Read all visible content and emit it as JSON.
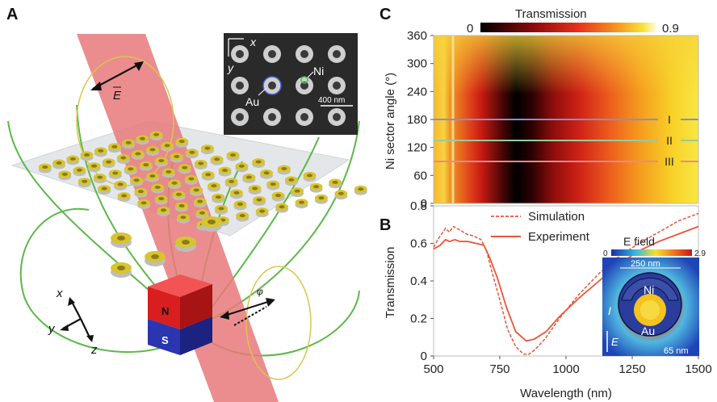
{
  "panels": {
    "a": {
      "label": "A",
      "field_label": "E",
      "inset_axis_x": "x",
      "inset_axis_y": "y",
      "inset_au": "Au",
      "inset_ni": "Ni",
      "inset_scale": "400 nm",
      "magnet_n": "N",
      "magnet_s": "S",
      "axes_x": "x",
      "axes_y": "y",
      "axes_z": "z",
      "phi": "φ"
    },
    "b": {
      "label": "B",
      "ylabel": "Transmission",
      "xlabel": "Wavelength (nm)",
      "legend_simulation": "Simulation",
      "legend_experiment": "Experiment",
      "inset_title": "E field",
      "inset_cb_min": "0",
      "inset_cb_max": "2.9",
      "inset_width": "250 nm",
      "inset_ni": "Ni",
      "inset_au": "Au",
      "inset_i": "I",
      "inset_e": "E",
      "inset_gap": "65 nm"
    },
    "c": {
      "label": "C",
      "title": "Transmission",
      "cb_min": "0",
      "cb_max": "0.9",
      "ylabel": "Ni sector angle (°)",
      "line_labels": [
        "I",
        "II",
        "III"
      ]
    }
  },
  "colors": {
    "beam": "#e8797a",
    "ring_gold": "#d8c431",
    "ring_silver": "#bdbdbd",
    "field_line": "#5cb84a",
    "magnet_n": "#e02020",
    "magnet_s": "#2a36b0",
    "curve": "#e8553a",
    "line_I": "#8a8ec8",
    "line_II": "#9ac99c",
    "line_III": "#e88a8a"
  },
  "chart_data": [
    {
      "type": "heatmap",
      "title": "Transmission",
      "xlabel": "",
      "ylabel": "Ni sector angle (°)",
      "x_range": [
        500,
        1500
      ],
      "y_range": [
        0,
        360
      ],
      "y_ticks": [
        0,
        60,
        120,
        180,
        240,
        300,
        360
      ],
      "colorbar_range": [
        0,
        0.9
      ],
      "marked_angles": [
        {
          "label": "I",
          "value": 180
        },
        {
          "label": "II",
          "value": 135
        },
        {
          "label": "III",
          "value": 90
        }
      ]
    },
    {
      "type": "line",
      "xlabel": "Wavelength (nm)",
      "ylabel": "Transmission",
      "xlim": [
        500,
        1500
      ],
      "ylim": [
        0,
        0.8
      ],
      "x_ticks": [
        500,
        750,
        1000,
        1250,
        1500
      ],
      "y_ticks": [
        0,
        0.2,
        0.4,
        0.6,
        0.8
      ],
      "series": [
        {
          "name": "Simulation",
          "style": "dashed",
          "points": [
            [
              500,
              0.58
            ],
            [
              520,
              0.63
            ],
            [
              545,
              0.68
            ],
            [
              560,
              0.66
            ],
            [
              575,
              0.69
            ],
            [
              600,
              0.67
            ],
            [
              625,
              0.65
            ],
            [
              650,
              0.64
            ],
            [
              680,
              0.62
            ],
            [
              700,
              0.56
            ],
            [
              720,
              0.45
            ],
            [
              750,
              0.3
            ],
            [
              780,
              0.14
            ],
            [
              810,
              0.05
            ],
            [
              840,
              0.01
            ],
            [
              860,
              0.01
            ],
            [
              880,
              0.03
            ],
            [
              920,
              0.09
            ],
            [
              975,
              0.2
            ],
            [
              1050,
              0.33
            ],
            [
              1125,
              0.44
            ],
            [
              1200,
              0.53
            ],
            [
              1275,
              0.6
            ],
            [
              1350,
              0.66
            ],
            [
              1425,
              0.72
            ],
            [
              1500,
              0.76
            ]
          ]
        },
        {
          "name": "Experiment",
          "style": "solid",
          "points": [
            [
              500,
              0.57
            ],
            [
              525,
              0.59
            ],
            [
              545,
              0.62
            ],
            [
              560,
              0.61
            ],
            [
              580,
              0.62
            ],
            [
              600,
              0.61
            ],
            [
              630,
              0.61
            ],
            [
              660,
              0.6
            ],
            [
              690,
              0.59
            ],
            [
              710,
              0.53
            ],
            [
              740,
              0.42
            ],
            [
              775,
              0.26
            ],
            [
              810,
              0.13
            ],
            [
              850,
              0.08
            ],
            [
              880,
              0.09
            ],
            [
              925,
              0.13
            ],
            [
              975,
              0.21
            ],
            [
              1050,
              0.31
            ],
            [
              1125,
              0.4
            ],
            [
              1200,
              0.49
            ],
            [
              1275,
              0.56
            ],
            [
              1350,
              0.61
            ],
            [
              1425,
              0.65
            ],
            [
              1500,
              0.69
            ]
          ]
        }
      ]
    }
  ]
}
